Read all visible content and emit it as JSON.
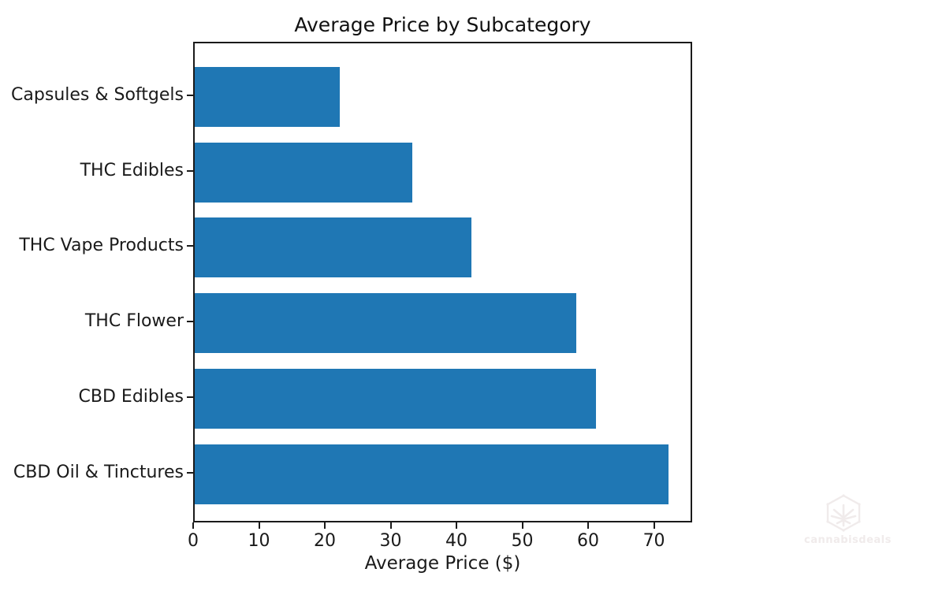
{
  "chart_data": {
    "type": "bar",
    "orientation": "horizontal",
    "title": "Average Price by Subcategory",
    "xlabel": "Average Price ($)",
    "ylabel": "",
    "categories": [
      "Capsules & Softgels",
      "THC Edibles",
      "THC Vape Products",
      "THC Flower",
      "CBD Edibles",
      "CBD Oil & Tinctures"
    ],
    "values": [
      22,
      33,
      42,
      58,
      61,
      72
    ],
    "xticks": [
      0,
      10,
      20,
      30,
      40,
      50,
      60,
      70
    ],
    "xlim": [
      0,
      75.8
    ],
    "grid": false,
    "legend": null,
    "bar_color": "#1f77b4",
    "axis_color": "#1a1a1a",
    "background_color": "#ffffff"
  },
  "watermark": {
    "text": "cannabisdeals",
    "icon": "cannabis-leaf-hexagon-icon",
    "color": "#f0ebeb"
  }
}
